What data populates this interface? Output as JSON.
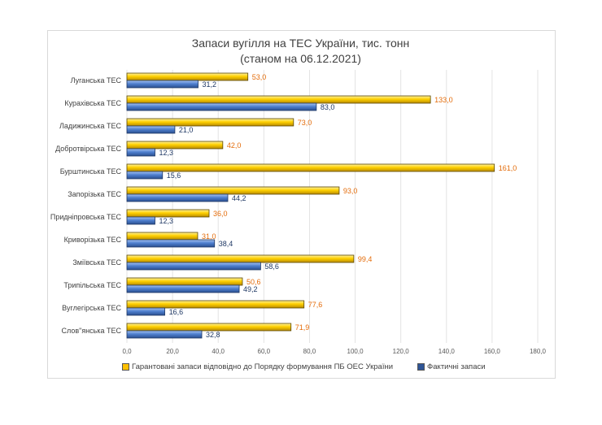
{
  "chart_data": {
    "type": "bar",
    "orientation": "horizontal",
    "title": "Запаси вугілля на ТЕС України, тис. тонн",
    "subtitle": "(станом на 06.12.2021)",
    "categories": [
      "Луганська ТЕС",
      "Курахівська ТЕС",
      "Ладижинська ТЕС",
      "Добротвірська ТЕС",
      "Бурштинська ТЕС",
      "Запорізька ТЕС",
      "Придніпровська ТЕС",
      "Криворізька ТЕС",
      "Зміївська ТЕС",
      "Трипільська ТЕС",
      "Вуглегірська ТЕС",
      "Слов\"янська ТЕС"
    ],
    "series": [
      {
        "name": "Гарантовані запаси відповідно до Порядку формування ПБ ОЕС України",
        "color": "#ffc000",
        "values": [
          53.0,
          133.0,
          73.0,
          42.0,
          161.0,
          93.0,
          36.0,
          31.0,
          99.4,
          50.6,
          77.6,
          71.9
        ],
        "labels": [
          "53,0",
          "133,0",
          "73,0",
          "42,0",
          "161,0",
          "93,0",
          "36,0",
          "31,0",
          "99,4",
          "50,6",
          "77,6",
          "71,9"
        ]
      },
      {
        "name": "Фактичні запаси",
        "color": "#4472c4",
        "values": [
          31.2,
          83.0,
          21.0,
          12.3,
          15.6,
          44.2,
          12.3,
          38.4,
          58.6,
          49.2,
          16.6,
          32.8
        ],
        "labels": [
          "31,2",
          "83,0",
          "21,0",
          "12,3",
          "15,6",
          "44,2",
          "12,3",
          "38,4",
          "58,6",
          "49,2",
          "16,6",
          "32,8"
        ]
      }
    ],
    "xlim": [
      0,
      180
    ],
    "xticks": [
      "0,0",
      "20,0",
      "40,0",
      "60,0",
      "80,0",
      "100,0",
      "120,0",
      "140,0",
      "160,0",
      "180,0"
    ],
    "grid": true,
    "legend": "bottom"
  }
}
